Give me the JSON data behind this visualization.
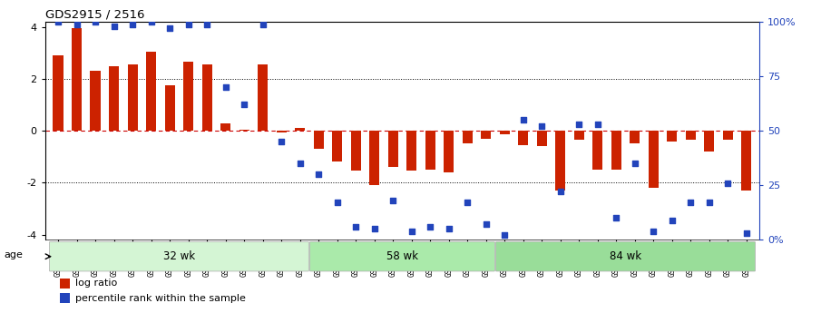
{
  "title": "GDS2915 / 2516",
  "samples": [
    "GSM97277",
    "GSM97278",
    "GSM97279",
    "GSM97280",
    "GSM97281",
    "GSM97282",
    "GSM97283",
    "GSM97284",
    "GSM97285",
    "GSM97286",
    "GSM97287",
    "GSM97288",
    "GSM97289",
    "GSM97290",
    "GSM97291",
    "GSM97292",
    "GSM97293",
    "GSM97294",
    "GSM97295",
    "GSM97296",
    "GSM97297",
    "GSM97298",
    "GSM97299",
    "GSM97300",
    "GSM97301",
    "GSM97302",
    "GSM97303",
    "GSM97304",
    "GSM97305",
    "GSM97306",
    "GSM97307",
    "GSM97308",
    "GSM97309",
    "GSM97310",
    "GSM97311",
    "GSM97312",
    "GSM97313",
    "GSM97314"
  ],
  "log_ratio": [
    2.9,
    3.95,
    2.3,
    2.5,
    2.55,
    3.05,
    1.75,
    2.65,
    2.55,
    0.3,
    0.05,
    2.55,
    -0.05,
    0.1,
    -0.7,
    -1.2,
    -1.55,
    -2.1,
    -1.4,
    -1.55,
    -1.5,
    -1.6,
    -0.5,
    -0.3,
    -0.15,
    -0.55,
    -0.6,
    -2.3,
    -0.35,
    -1.5,
    -1.5,
    -0.5,
    -2.2,
    -0.4,
    -0.35,
    -0.8,
    -0.35,
    -2.3
  ],
  "percentile": [
    100,
    99,
    100,
    98,
    99,
    100,
    97,
    99,
    99,
    70,
    62,
    99,
    45,
    35,
    30,
    17,
    6,
    5,
    18,
    4,
    6,
    5,
    17,
    7,
    2,
    55,
    52,
    22,
    53,
    53,
    10,
    35,
    4,
    9,
    17,
    17,
    26,
    3
  ],
  "groups": [
    {
      "label": "32 wk",
      "start": 0,
      "end": 14,
      "color": "#d4f5d4"
    },
    {
      "label": "58 wk",
      "start": 14,
      "end": 24,
      "color": "#aaeaaa"
    },
    {
      "label": "84 wk",
      "start": 24,
      "end": 38,
      "color": "#99dd99"
    }
  ],
  "bar_color": "#cc2200",
  "dot_color": "#2244bb",
  "ylim": [
    -4.2,
    4.2
  ],
  "yticks_left": [
    -4,
    -2,
    0,
    2,
    4
  ],
  "hlines_dotted": [
    -2,
    2
  ],
  "hline_dashed": 0,
  "legend_items": [
    "log ratio",
    "percentile rank within the sample"
  ],
  "age_label": "age"
}
